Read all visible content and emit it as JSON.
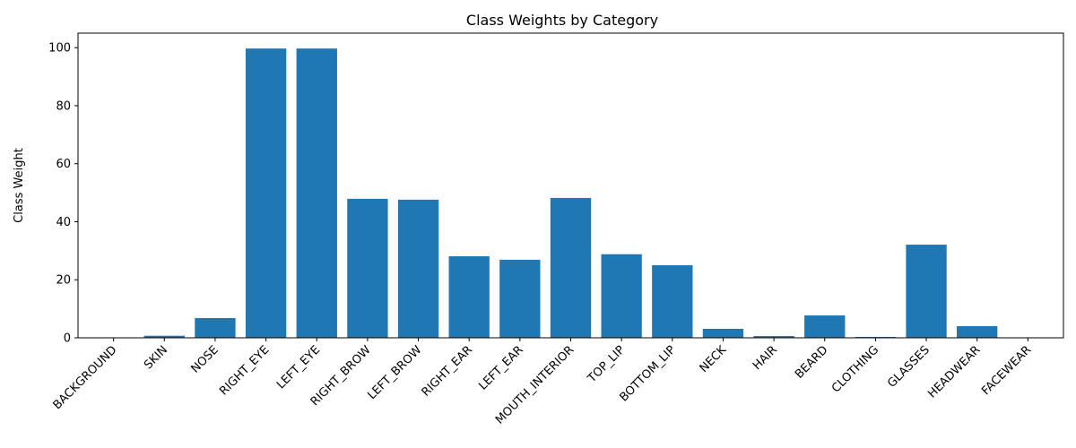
{
  "chart_data": {
    "type": "bar",
    "title": "Class Weights by Category",
    "xlabel": "",
    "ylabel": "Class Weight",
    "ylim": [
      0,
      105
    ],
    "yticks": [
      0,
      20,
      40,
      60,
      80,
      100
    ],
    "grid": false,
    "bar_color": "#1f77b4",
    "categories": [
      "BACKGROUND",
      "SKIN",
      "NOSE",
      "RIGHT_EYE",
      "LEFT_EYE",
      "RIGHT_BROW",
      "LEFT_BROW",
      "RIGHT_EAR",
      "LEFT_EAR",
      "MOUTH_INTERIOR",
      "TOP_LIP",
      "BOTTOM_LIP",
      "NECK",
      "HAIR",
      "BEARD",
      "CLOTHING",
      "GLASSES",
      "HEADWEAR",
      "FACEWEAR"
    ],
    "values": [
      0.0,
      0.7,
      6.8,
      99.7,
      99.7,
      47.9,
      47.6,
      28.1,
      26.9,
      48.2,
      28.8,
      25.0,
      3.1,
      0.6,
      7.7,
      0.3,
      32.1,
      4.0,
      0.0
    ]
  }
}
